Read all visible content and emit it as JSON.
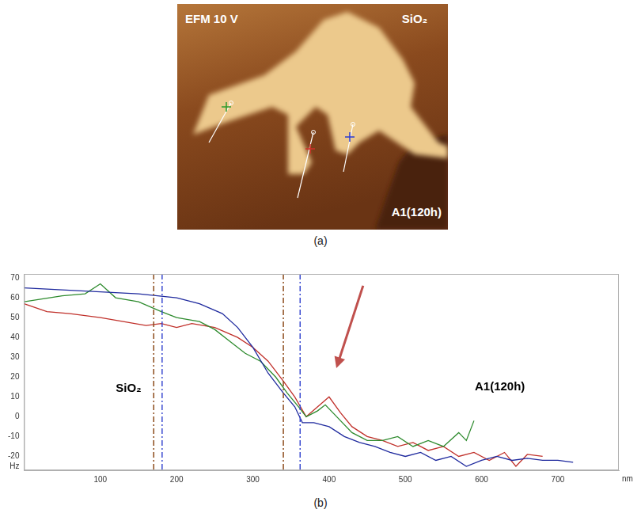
{
  "image": {
    "title": "EFM 10 V",
    "labels": [
      "SiO₂",
      "A1(120h)"
    ],
    "caption": "(a)"
  },
  "chart_data": {
    "type": "line",
    "caption": "(b)",
    "xlabel": "nm",
    "ylabel": "Hz",
    "xlim": [
      0,
      780
    ],
    "xticks": [
      100,
      200,
      300,
      400,
      500,
      600,
      700
    ],
    "ylim": [
      -27,
      72
    ],
    "yticks": [
      -20,
      -10,
      0,
      10,
      20,
      30,
      40,
      50,
      60,
      70
    ],
    "grid": false,
    "series": [
      {
        "color": "#1f2a9e",
        "x": [
          0,
          50,
          100,
          150,
          200,
          230,
          260,
          280,
          300,
          320,
          340,
          355,
          365,
          380,
          400,
          420,
          440,
          460,
          480,
          500,
          520,
          540,
          560,
          580,
          600,
          620,
          640,
          660,
          680,
          700,
          720
        ],
        "values": [
          65,
          64,
          63,
          62,
          60,
          57,
          52,
          45,
          35,
          22,
          12,
          5,
          -3,
          -3,
          -5,
          -10,
          -13,
          -15,
          -18,
          -20,
          -18,
          -22,
          -20,
          -25,
          -22,
          -20,
          -22,
          -21,
          -22,
          -22,
          -23
        ]
      },
      {
        "color": "#2e8b2e",
        "x": [
          0,
          50,
          80,
          100,
          120,
          150,
          180,
          200,
          230,
          250,
          270,
          290,
          310,
          330,
          345,
          360,
          370,
          385,
          395,
          410,
          430,
          450,
          470,
          490,
          510,
          530,
          550,
          570,
          580,
          590
        ],
        "values": [
          58,
          61,
          62,
          67,
          60,
          58,
          53,
          50,
          48,
          44,
          38,
          32,
          28,
          20,
          12,
          5,
          0,
          3,
          6,
          0,
          -8,
          -12,
          -12,
          -10,
          -15,
          -12,
          -15,
          -8,
          -12,
          -2
        ]
      },
      {
        "color": "#c0302a",
        "x": [
          0,
          30,
          60,
          100,
          130,
          160,
          180,
          200,
          220,
          250,
          280,
          300,
          320,
          340,
          355,
          370,
          385,
          400,
          415,
          430,
          450,
          470,
          490,
          510,
          530,
          550,
          570,
          590,
          610,
          630,
          645,
          660,
          680
        ],
        "values": [
          57,
          53,
          52,
          50,
          48,
          46,
          47,
          45,
          47,
          45,
          40,
          35,
          28,
          18,
          10,
          0,
          5,
          10,
          2,
          -5,
          -10,
          -12,
          -15,
          -13,
          -17,
          -15,
          -20,
          -18,
          -22,
          -18,
          -25,
          -19,
          -20
        ]
      }
    ],
    "vertical_lines": [
      {
        "x": 170,
        "color": "#8b4a1a",
        "line_style": "dashdot"
      },
      {
        "x": 181,
        "color": "#3b4bd0",
        "line_style": "dashdot"
      },
      {
        "x": 340,
        "color": "#8b4a1a",
        "line_style": "dashdot"
      },
      {
        "x": 362,
        "color": "#3b4bd0",
        "line_style": "dashdot"
      }
    ],
    "annotations": [
      {
        "text": "SiO₂",
        "x": 137,
        "y": 14
      },
      {
        "text": "A1(120h)",
        "x": 624,
        "y": 15
      }
    ]
  }
}
